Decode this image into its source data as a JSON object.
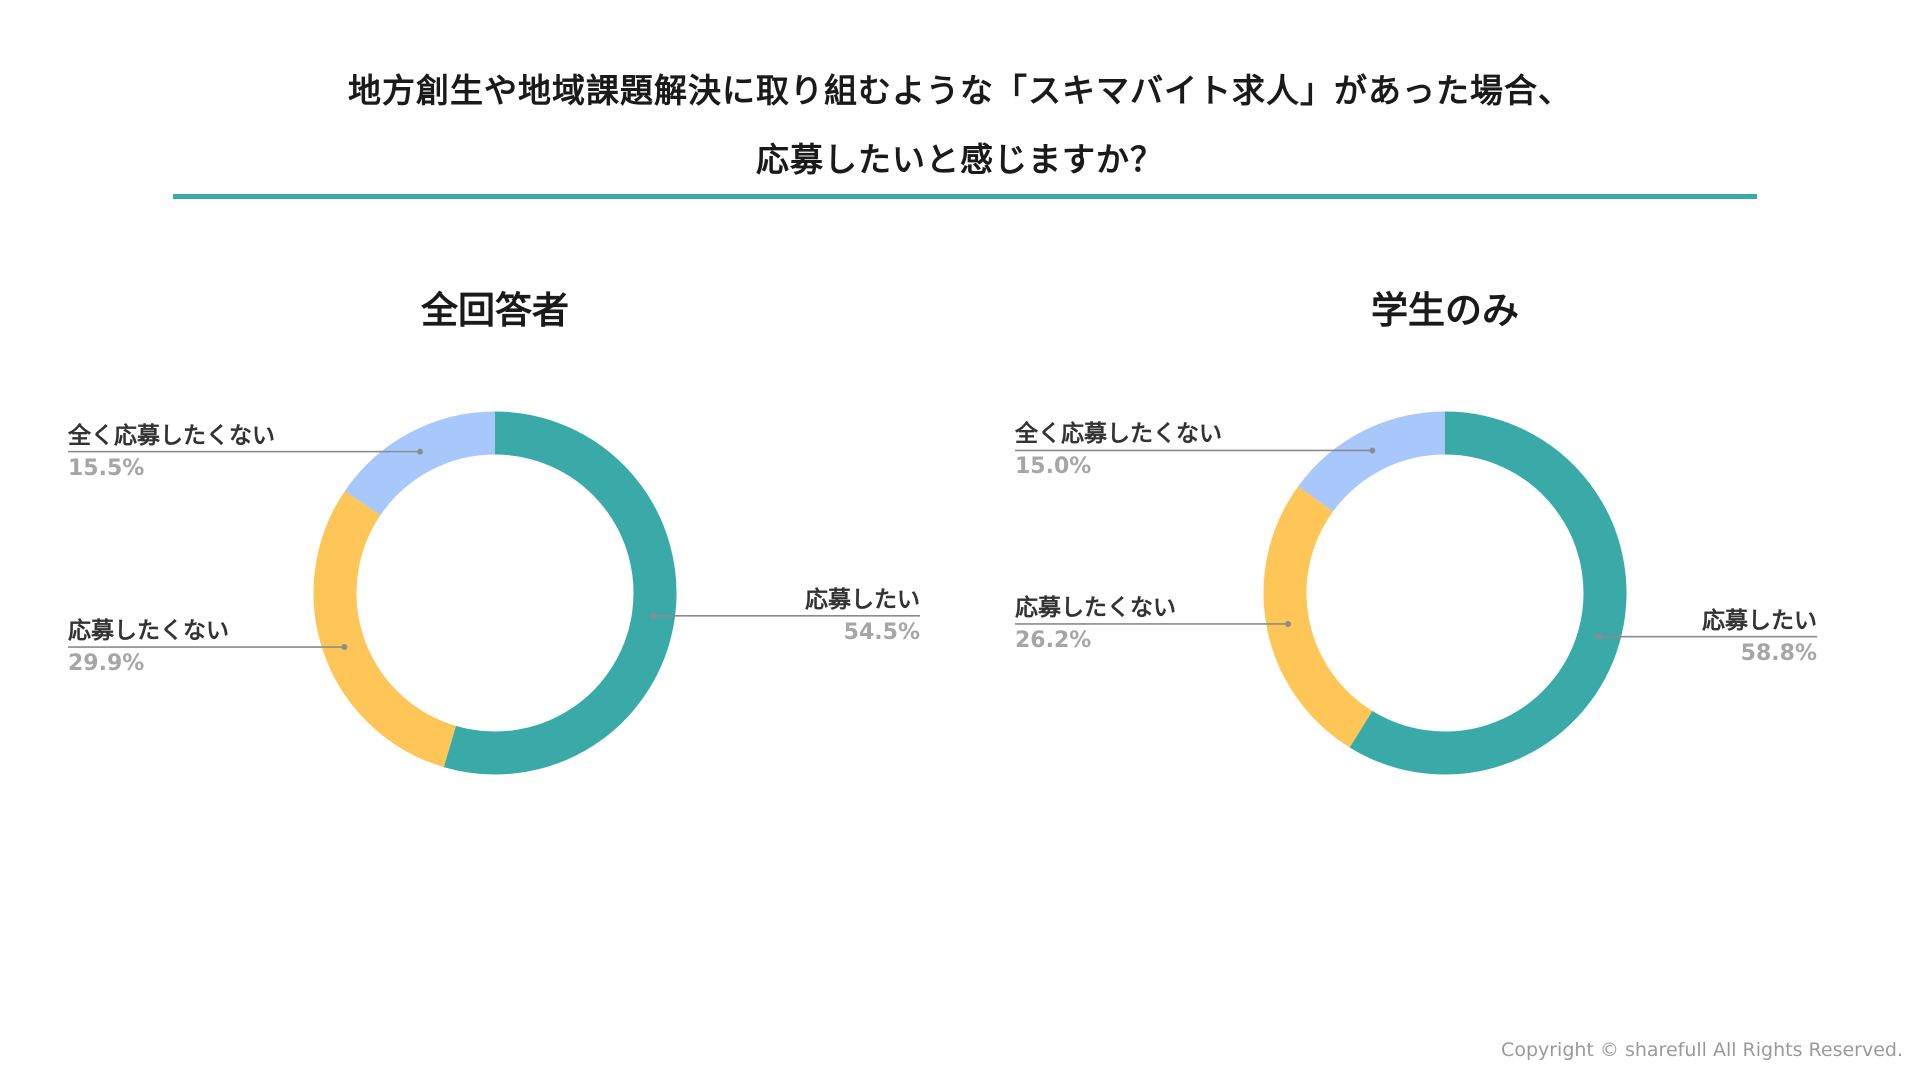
{
  "title_lines": [
    "地方創生や地域課題解決に取り組むような「スキマバイト求人」があった場合、",
    "応募したいと感じますか？"
  ],
  "colors": {
    "accent_rule": "#3aa9a8",
    "apply": "#3aaaa9",
    "not_apply": "#fdc656",
    "never": "#a8c7fa"
  },
  "chart_data": [
    {
      "type": "pie",
      "title": "全回答者",
      "slices": [
        {
          "label": "応募したい",
          "value": 54.5,
          "display": "54.5%"
        },
        {
          "label": "応募したくない",
          "value": 29.9,
          "display": "29.9%"
        },
        {
          "label": "全く応募したくない",
          "value": 15.5,
          "display": "15.5%"
        }
      ],
      "donut": true,
      "legend": "none"
    },
    {
      "type": "pie",
      "title": "学生のみ",
      "slices": [
        {
          "label": "応募したい",
          "value": 58.8,
          "display": "58.8%"
        },
        {
          "label": "応募したくない",
          "value": 26.2,
          "display": "26.2%"
        },
        {
          "label": "全く応募したくない",
          "value": 15.0,
          "display": "15.0%"
        }
      ],
      "donut": true,
      "legend": "none"
    }
  ],
  "footer": {
    "copyright": "Copyright © sharefull All Rights Reserved."
  }
}
